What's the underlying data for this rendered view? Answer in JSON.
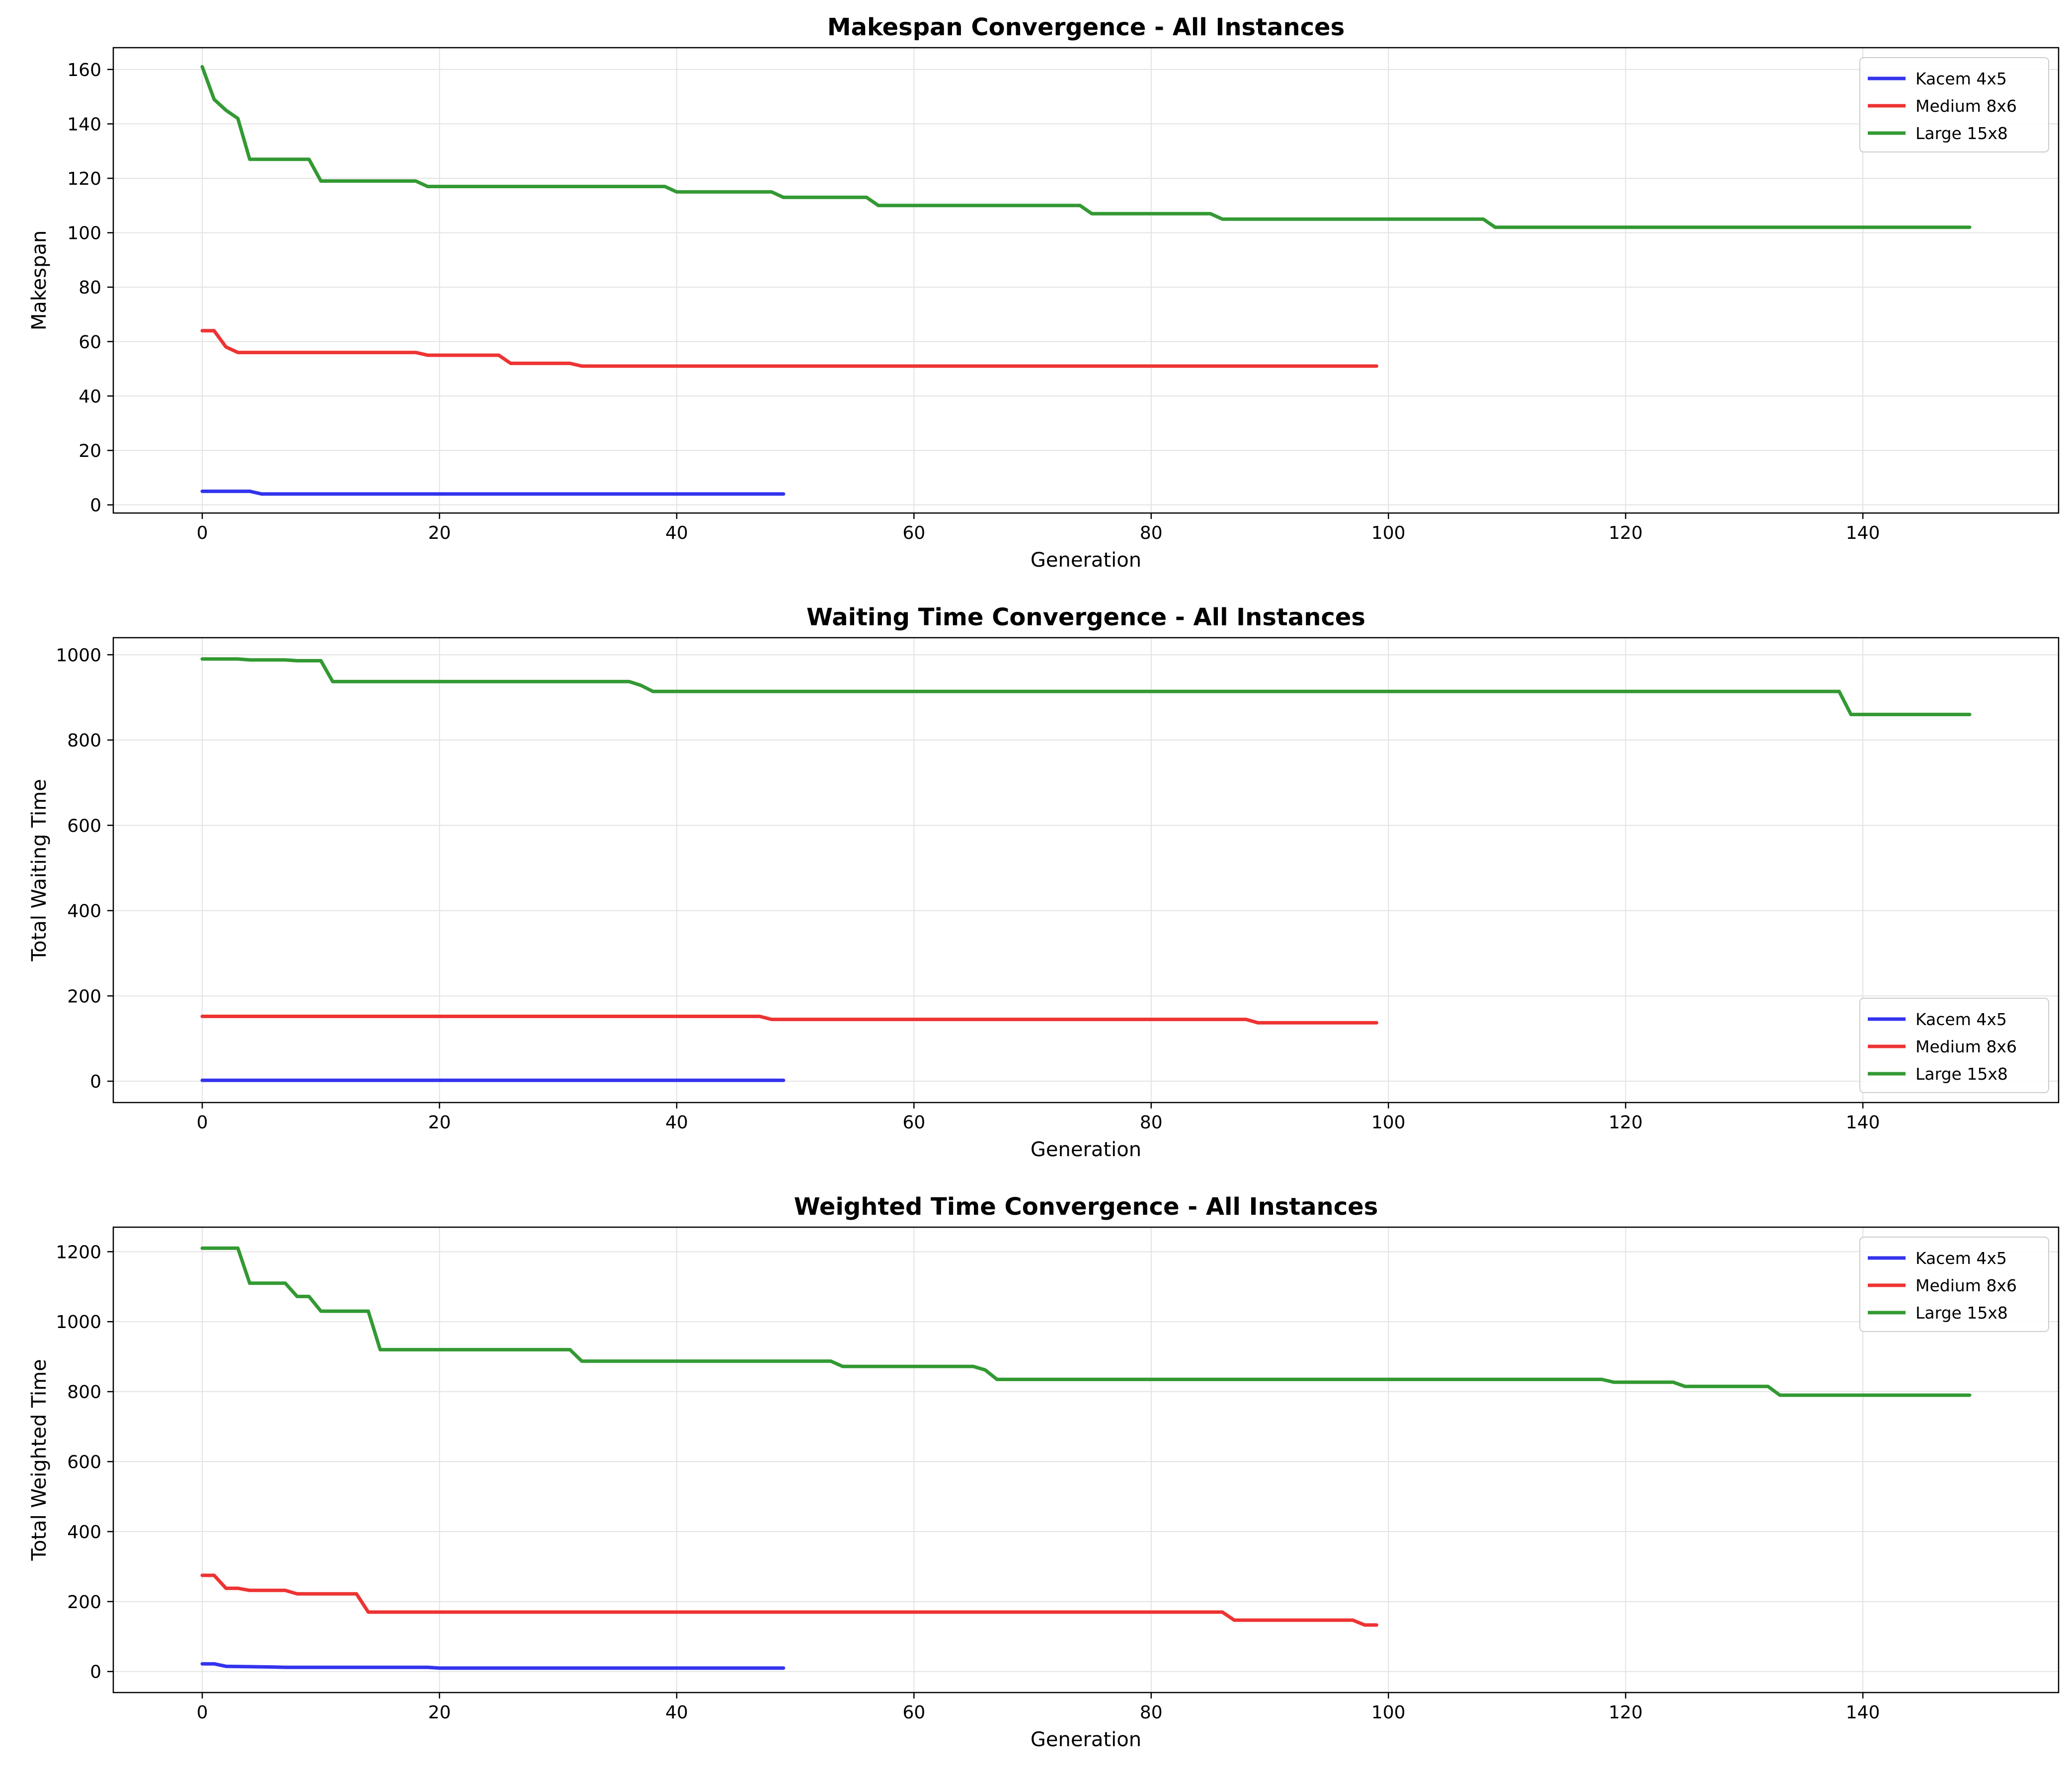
{
  "chart_data": [
    {
      "type": "line",
      "title": "Makespan Convergence - All Instances",
      "xlabel": "Generation",
      "ylabel": "Makespan",
      "xlim": [
        -7.5,
        156.5
      ],
      "ylim": [
        -3,
        168
      ],
      "xticks": [
        0,
        20,
        40,
        60,
        80,
        100,
        120,
        140
      ],
      "yticks": [
        0,
        20,
        40,
        60,
        80,
        100,
        120,
        140,
        160
      ],
      "grid": true,
      "legend": "top-right",
      "series": [
        {
          "name": "Kacem 4x5",
          "color": "#3333ee",
          "points": [
            [
              0,
              5
            ],
            [
              4,
              5
            ],
            [
              5,
              4
            ],
            [
              49,
              4
            ]
          ]
        },
        {
          "name": "Medium 8x6",
          "color": "#ee3333",
          "points": [
            [
              0,
              64
            ],
            [
              1,
              64
            ],
            [
              2,
              58
            ],
            [
              3,
              56
            ],
            [
              18,
              56
            ],
            [
              19,
              55
            ],
            [
              25,
              55
            ],
            [
              26,
              52
            ],
            [
              31,
              52
            ],
            [
              32,
              51
            ],
            [
              99,
              51
            ]
          ]
        },
        {
          "name": "Large 15x8",
          "color": "#339933",
          "points": [
            [
              0,
              161
            ],
            [
              1,
              149
            ],
            [
              2,
              145
            ],
            [
              3,
              142
            ],
            [
              4,
              127
            ],
            [
              9,
              127
            ],
            [
              10,
              119
            ],
            [
              18,
              119
            ],
            [
              19,
              117
            ],
            [
              39,
              117
            ],
            [
              40,
              115
            ],
            [
              48,
              115
            ],
            [
              49,
              113
            ],
            [
              56,
              113
            ],
            [
              57,
              110
            ],
            [
              74,
              110
            ],
            [
              75,
              107
            ],
            [
              85,
              107
            ],
            [
              86,
              105
            ],
            [
              108,
              105
            ],
            [
              109,
              102
            ],
            [
              149,
              102
            ]
          ]
        }
      ]
    },
    {
      "type": "line",
      "title": "Waiting Time Convergence - All Instances",
      "xlabel": "Generation",
      "ylabel": "Total Waiting Time",
      "xlim": [
        -7.5,
        156.5
      ],
      "ylim": [
        -50,
        1040
      ],
      "xticks": [
        0,
        20,
        40,
        60,
        80,
        100,
        120,
        140
      ],
      "yticks": [
        0,
        200,
        400,
        600,
        800,
        1000
      ],
      "grid": true,
      "legend": "bottom-right",
      "series": [
        {
          "name": "Kacem 4x5",
          "color": "#3333ee",
          "points": [
            [
              0,
              2
            ],
            [
              49,
              2
            ]
          ]
        },
        {
          "name": "Medium 8x6",
          "color": "#ee3333",
          "points": [
            [
              0,
              152
            ],
            [
              47,
              152
            ],
            [
              48,
              145
            ],
            [
              88,
              145
            ],
            [
              89,
              137
            ],
            [
              99,
              137
            ]
          ]
        },
        {
          "name": "Large 15x8",
          "color": "#339933",
          "points": [
            [
              0,
              990
            ],
            [
              3,
              990
            ],
            [
              4,
              988
            ],
            [
              7,
              988
            ],
            [
              8,
              986
            ],
            [
              10,
              986
            ],
            [
              11,
              937
            ],
            [
              36,
              937
            ],
            [
              37,
              928
            ],
            [
              38,
              914
            ],
            [
              138,
              914
            ],
            [
              139,
              860
            ],
            [
              149,
              860
            ]
          ]
        }
      ]
    },
    {
      "type": "line",
      "title": "Weighted Time Convergence - All Instances",
      "xlabel": "Generation",
      "ylabel": "Total Weighted Time",
      "xlim": [
        -7.5,
        156.5
      ],
      "ylim": [
        -60,
        1270
      ],
      "xticks": [
        0,
        20,
        40,
        60,
        80,
        100,
        120,
        140
      ],
      "yticks": [
        0,
        200,
        400,
        600,
        800,
        1000,
        1200
      ],
      "grid": true,
      "legend": "top-right",
      "series": [
        {
          "name": "Kacem 4x5",
          "color": "#3333ee",
          "points": [
            [
              0,
              22
            ],
            [
              1,
              22
            ],
            [
              2,
              15
            ],
            [
              6,
              13
            ],
            [
              7,
              12
            ],
            [
              19,
              12
            ],
            [
              20,
              10
            ],
            [
              49,
              10
            ]
          ]
        },
        {
          "name": "Medium 8x6",
          "color": "#ee3333",
          "points": [
            [
              0,
              275
            ],
            [
              1,
              275
            ],
            [
              2,
              238
            ],
            [
              3,
              238
            ],
            [
              4,
              232
            ],
            [
              7,
              232
            ],
            [
              8,
              222
            ],
            [
              13,
              222
            ],
            [
              14,
              170
            ],
            [
              86,
              170
            ],
            [
              87,
              147
            ],
            [
              97,
              147
            ],
            [
              98,
              133
            ],
            [
              99,
              133
            ]
          ]
        },
        {
          "name": "Large 15x8",
          "color": "#339933",
          "points": [
            [
              0,
              1210
            ],
            [
              3,
              1210
            ],
            [
              4,
              1110
            ],
            [
              7,
              1110
            ],
            [
              8,
              1072
            ],
            [
              9,
              1072
            ],
            [
              10,
              1030
            ],
            [
              14,
              1030
            ],
            [
              15,
              920
            ],
            [
              31,
              920
            ],
            [
              32,
              887
            ],
            [
              53,
              887
            ],
            [
              54,
              872
            ],
            [
              65,
              872
            ],
            [
              66,
              862
            ],
            [
              67,
              835
            ],
            [
              118,
              835
            ],
            [
              119,
              827
            ],
            [
              124,
              827
            ],
            [
              125,
              815
            ],
            [
              132,
              815
            ],
            [
              133,
              790
            ],
            [
              149,
              790
            ]
          ]
        }
      ]
    }
  ]
}
